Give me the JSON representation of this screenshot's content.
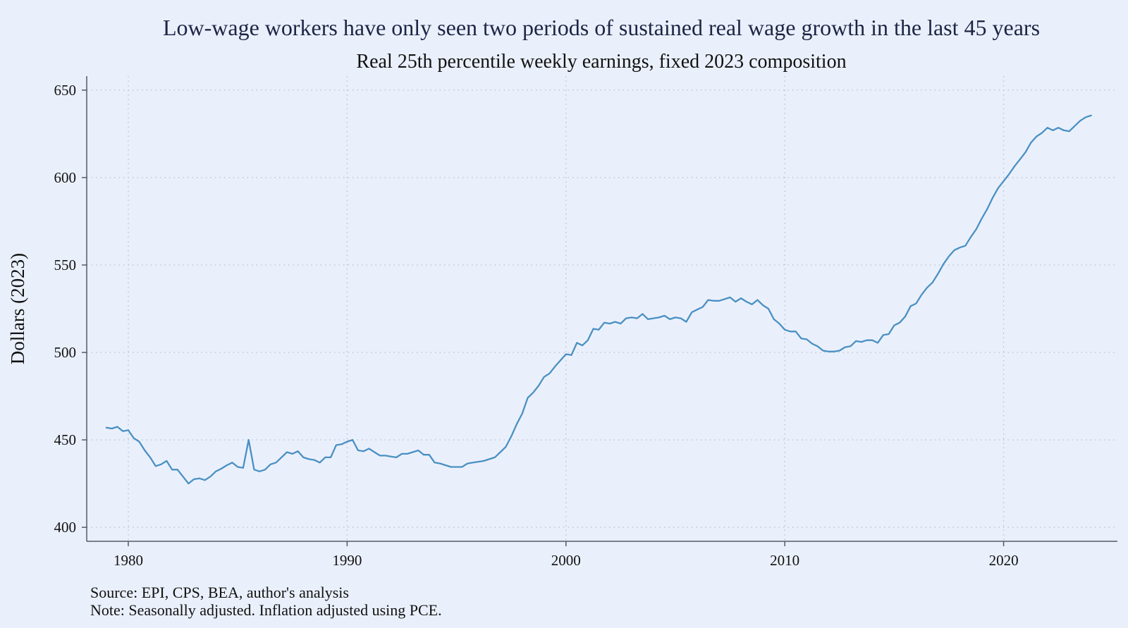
{
  "chart_data": {
    "type": "line",
    "title": "Low-wage workers have only seen two periods of sustained real wage growth in the last 45 years",
    "subtitle": "Real 25th percentile weekly earnings, fixed 2023 composition",
    "xlabel": "",
    "ylabel": "Dollars (2023)",
    "xlim": [
      1978.1,
      2025.2
    ],
    "ylim": [
      392,
      658
    ],
    "xticks": [
      1980,
      1990,
      2000,
      2010,
      2020
    ],
    "yticks": [
      400,
      450,
      500,
      550,
      600,
      650
    ],
    "grid": true,
    "line_color": "#4a90c4",
    "notes": [
      "Source: EPI, CPS, BEA, author's analysis",
      "Note: Seasonally adjusted. Inflation adjusted using PCE."
    ],
    "series": [
      {
        "x": [
          1979.0,
          1979.25,
          1979.5,
          1979.75,
          1980.0,
          1980.25,
          1980.5,
          1980.75,
          1981.0,
          1981.25,
          1981.5,
          1981.75,
          1982.0,
          1982.25,
          1982.5,
          1982.75,
          1983.0,
          1983.25,
          1983.5,
          1983.75,
          1984.0,
          1984.25,
          1984.5,
          1984.75,
          1985.0,
          1985.25,
          1985.5,
          1985.75,
          1986.0,
          1986.25,
          1986.5,
          1986.75,
          1987.0,
          1987.25,
          1987.5,
          1987.75,
          1988.0,
          1988.25,
          1988.5,
          1988.75,
          1989.0,
          1989.25,
          1989.5,
          1989.75,
          1990.0,
          1990.25,
          1990.5,
          1990.75,
          1991.0,
          1991.25,
          1991.5,
          1991.75,
          1992.0,
          1992.25,
          1992.5,
          1992.75,
          1993.0,
          1993.25,
          1993.5,
          1993.75,
          1994.0,
          1994.25,
          1994.5,
          1994.75,
          1995.0,
          1995.25,
          1995.5,
          1995.75,
          1996.0,
          1996.25,
          1996.5,
          1996.75,
          1997.0,
          1997.25,
          1997.5,
          1997.75,
          1998.0,
          1998.25,
          1998.5,
          1998.75,
          1999.0,
          1999.25,
          1999.5,
          1999.75,
          2000.0,
          2000.25,
          2000.5,
          2000.75,
          2001.0,
          2001.25,
          2001.5,
          2001.75,
          2002.0,
          2002.25,
          2002.5,
          2002.75,
          2003.0,
          2003.25,
          2003.5,
          2003.75,
          2004.0,
          2004.25,
          2004.5,
          2004.75,
          2005.0,
          2005.25,
          2005.5,
          2005.75,
          2006.0,
          2006.25,
          2006.5,
          2006.75,
          2007.0,
          2007.25,
          2007.5,
          2007.75,
          2008.0,
          2008.25,
          2008.5,
          2008.75,
          2009.0,
          2009.25,
          2009.5,
          2009.75,
          2010.0,
          2010.25,
          2010.5,
          2010.75,
          2011.0,
          2011.25,
          2011.5,
          2011.75,
          2012.0,
          2012.25,
          2012.5,
          2012.75,
          2013.0,
          2013.25,
          2013.5,
          2013.75,
          2014.0,
          2014.25,
          2014.5,
          2014.75,
          2015.0,
          2015.25,
          2015.5,
          2015.75,
          2016.0,
          2016.25,
          2016.5,
          2016.75,
          2017.0,
          2017.25,
          2017.5,
          2017.75,
          2018.0,
          2018.25,
          2018.5,
          2018.75,
          2019.0,
          2019.25,
          2019.5,
          2019.75,
          2020.0,
          2020.25,
          2020.5,
          2020.75,
          2021.0,
          2021.25,
          2021.5,
          2021.75,
          2022.0,
          2022.25,
          2022.5,
          2022.75,
          2023.0,
          2023.25,
          2023.5,
          2023.75,
          2024.0
        ],
        "values": [
          457,
          456.5,
          457.5,
          455,
          455.5,
          451,
          449,
          444,
          440,
          435,
          436,
          438,
          433,
          433,
          429,
          425,
          427.5,
          428,
          427,
          429,
          432,
          433.5,
          435.5,
          437,
          434.5,
          434,
          450,
          433,
          432,
          433,
          436,
          437,
          440,
          443,
          442,
          443.5,
          440,
          439,
          438.5,
          437,
          440,
          440,
          447,
          447.5,
          449,
          450,
          444,
          443.5,
          445,
          443,
          441,
          441,
          440.5,
          440,
          442,
          442,
          443,
          444,
          441.5,
          441.5,
          437,
          436.5,
          435.5,
          434.5,
          434.5,
          434.5,
          436.5,
          437,
          437.5,
          438,
          439,
          440,
          443,
          446,
          452,
          459,
          465,
          474,
          477,
          481,
          486,
          488,
          492,
          495.5,
          499,
          498.5,
          505.5,
          504,
          507,
          513.5,
          513,
          517,
          516.5,
          517.5,
          516.5,
          519.5,
          520,
          519.5,
          522,
          519,
          519.5,
          520,
          521,
          519,
          520,
          519.5,
          517.5,
          523,
          524.5,
          526,
          530,
          529.5,
          529.5,
          530.5,
          531.5,
          529,
          531,
          529,
          527.5,
          530,
          527,
          525,
          519,
          516.5,
          513,
          512,
          512,
          508,
          507.5,
          505,
          503.5,
          501,
          500.5,
          500.5,
          501,
          503,
          503.5,
          506.5,
          506,
          507,
          507,
          505.5,
          510,
          510.5,
          515.5,
          517,
          520.5,
          526.5,
          528,
          533,
          537,
          540,
          545,
          550.5,
          555,
          558.5,
          560,
          561,
          566,
          570.5,
          576.5,
          582,
          588.5,
          594,
          598,
          602,
          606.5,
          610.5,
          614.5,
          620,
          623.5,
          625.5,
          628.5,
          627,
          628.5,
          627,
          626.5,
          629.5,
          632.5,
          634.5,
          635.5
        ]
      }
    ]
  }
}
